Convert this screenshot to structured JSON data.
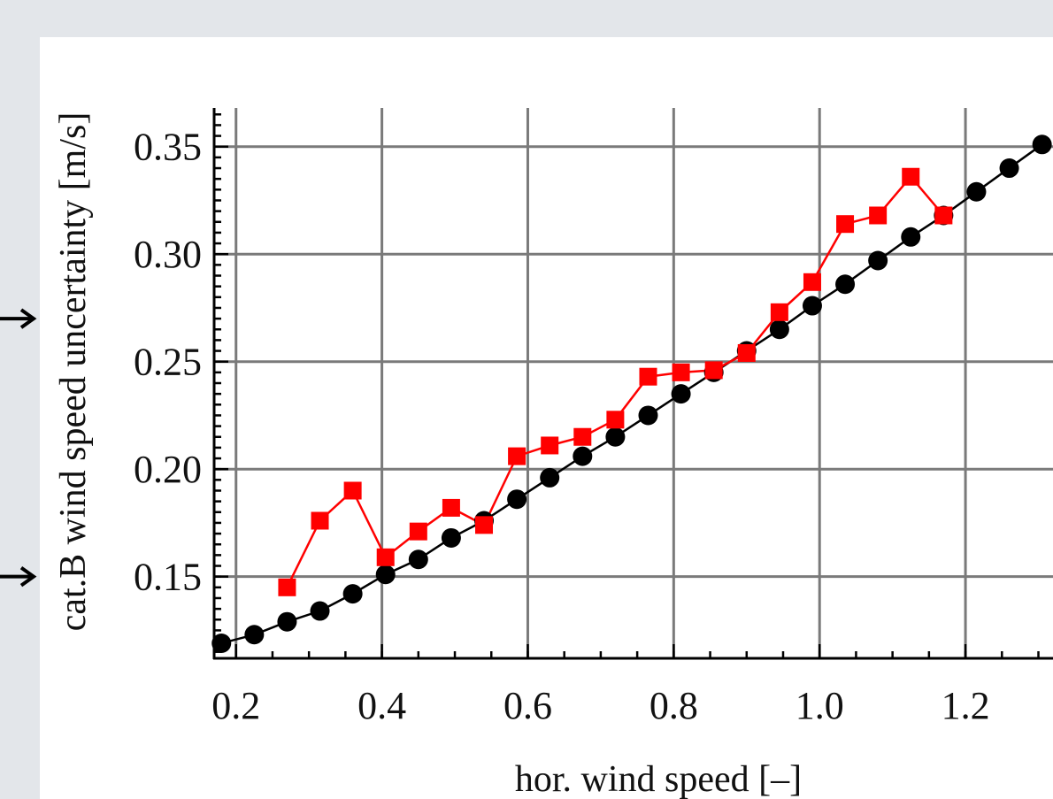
{
  "chart_data": {
    "type": "line",
    "xlabel": "hor. wind speed [–]",
    "ylabel": "cat.B wind speed uncertainty [m/s]",
    "xlim": [
      0.17,
      1.32
    ],
    "ylim": [
      0.112,
      0.368
    ],
    "grid": true,
    "x_ticks": [
      "0.2",
      "0.4",
      "0.6",
      "0.8",
      "1.0",
      "1.2"
    ],
    "y_ticks": [
      "0.15",
      "0.20",
      "0.25",
      "0.30",
      "0.35"
    ],
    "series": [
      {
        "marker": "circle",
        "color": "#000000",
        "x": [
          0.18,
          0.225,
          0.27,
          0.315,
          0.36,
          0.405,
          0.45,
          0.495,
          0.54,
          0.585,
          0.63,
          0.675,
          0.72,
          0.765,
          0.81,
          0.855,
          0.9,
          0.945,
          0.99,
          1.035,
          1.08,
          1.125,
          1.17,
          1.215,
          1.26,
          1.305
        ],
        "y": [
          0.119,
          0.123,
          0.129,
          0.134,
          0.142,
          0.151,
          0.158,
          0.168,
          0.176,
          0.186,
          0.196,
          0.206,
          0.215,
          0.225,
          0.235,
          0.245,
          0.255,
          0.265,
          0.276,
          0.286,
          0.297,
          0.308,
          0.318,
          0.329,
          0.34,
          0.351
        ]
      },
      {
        "marker": "square",
        "color": "#ff0000",
        "x": [
          0.27,
          0.315,
          0.36,
          0.405,
          0.45,
          0.495,
          0.54,
          0.585,
          0.63,
          0.675,
          0.72,
          0.765,
          0.81,
          0.855,
          0.9,
          0.945,
          0.99,
          1.035,
          1.08,
          1.125,
          1.17
        ],
        "y": [
          0.145,
          0.176,
          0.19,
          0.159,
          0.171,
          0.182,
          0.174,
          0.206,
          0.211,
          0.215,
          0.223,
          0.243,
          0.245,
          0.246,
          0.254,
          0.273,
          0.287,
          0.314,
          0.318,
          0.336,
          0.318
        ]
      }
    ]
  },
  "annotations": {
    "arrow_color": "#000000"
  }
}
